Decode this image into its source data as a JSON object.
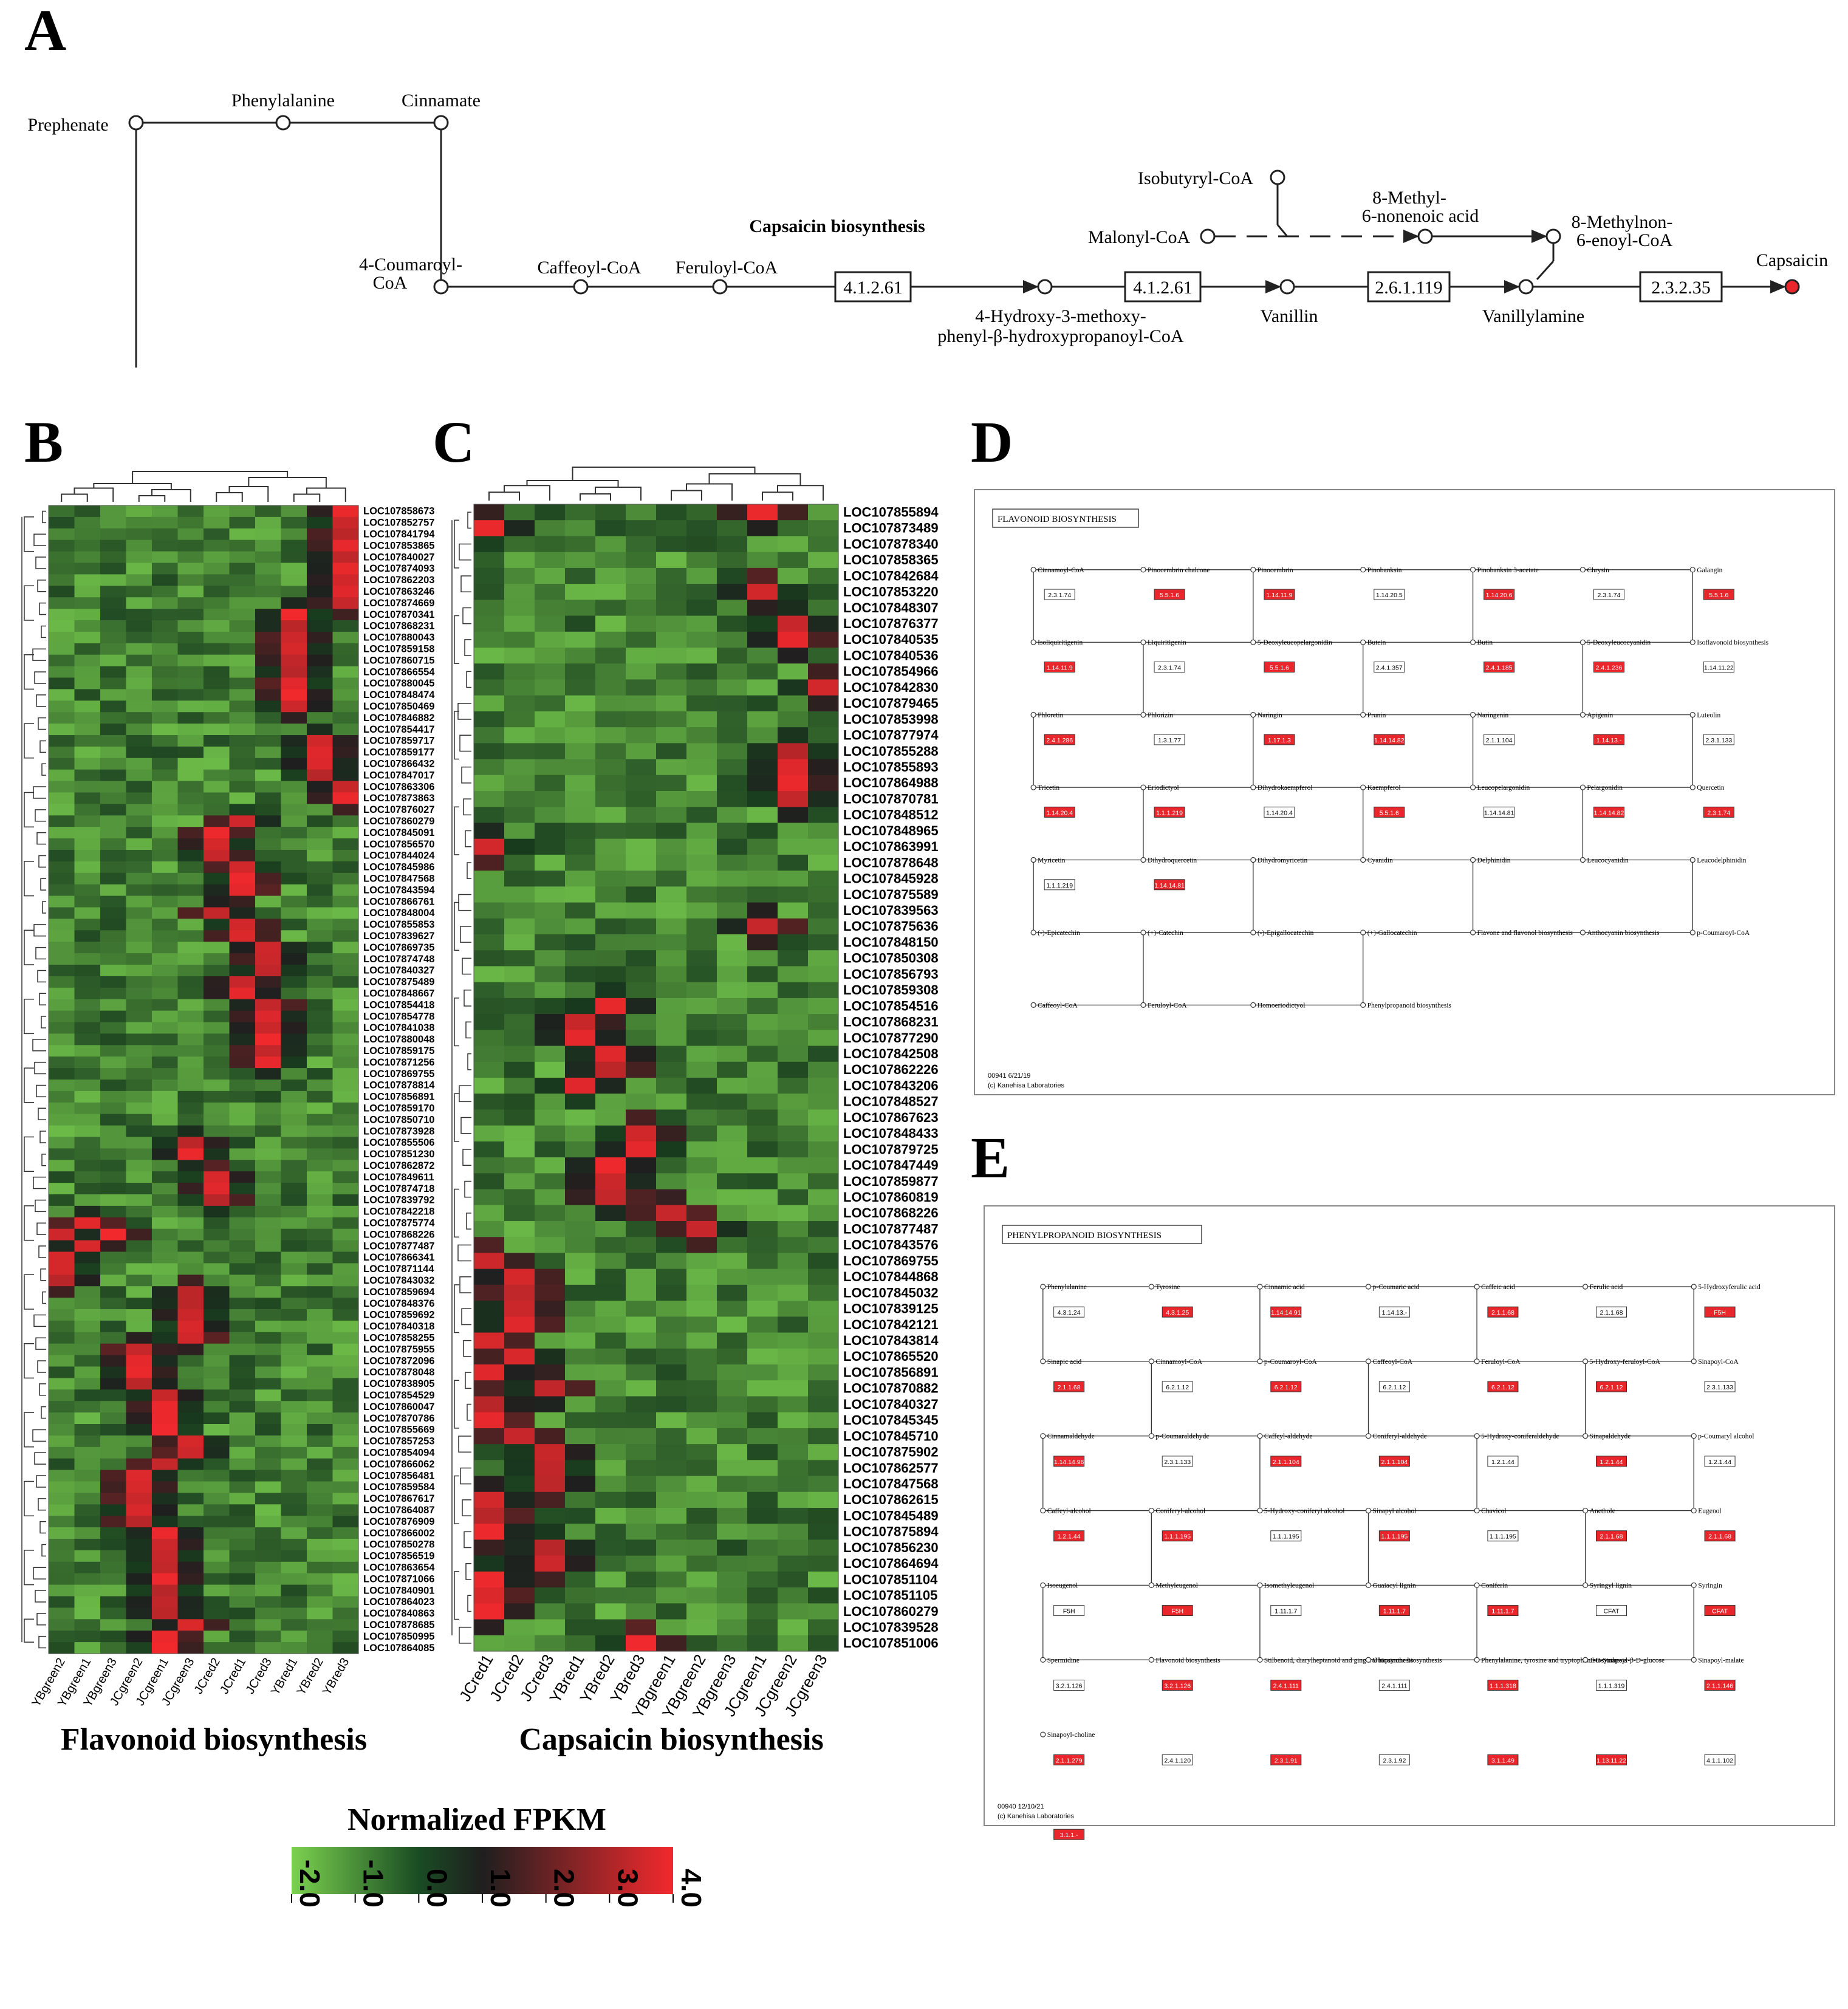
{
  "panel_letters": [
    "A",
    "B",
    "C",
    "D",
    "E"
  ],
  "panel_a": {
    "title": "Capsaicin biosynthesis",
    "compounds": {
      "prephenate": "Prephenate",
      "phenylalanine": "Phenylalanine",
      "cinnamate": "Cinnamate",
      "coumaroyl": [
        "4-Coumaroyl-",
        "CoA"
      ],
      "caffeoyl": "Caffeoyl-CoA",
      "feruloyl": "Feruloyl-CoA",
      "hmp": [
        "4-Hydroxy-3-methoxy-",
        "phenyl-β-hydroxypropanoyl-CoA"
      ],
      "vanillin": "Vanillin",
      "vanillylamine": "Vanillylamine",
      "isobutyryl": "Isobutyryl-CoA",
      "malonyl": "Malonyl-CoA",
      "methylnonenoic": [
        "8-Methyl-",
        "6-nonenoic acid"
      ],
      "methylnonenoyl": [
        "8-Methylnon-",
        "6-enoyl-CoA"
      ],
      "capsaicin": "Capsaicin"
    },
    "enzymes": [
      "4.1.2.61",
      "4.1.2.61",
      "2.6.1.119",
      "2.3.2.35"
    ],
    "colors": {
      "product_node": "#e8262b"
    }
  },
  "panel_b": {
    "caption": "Flavonoid biosynthesis",
    "samples": [
      "YBgreen2",
      "YBgreen1",
      "YBgreen3",
      "JCgreen2",
      "JCgreen1",
      "JCgreen3",
      "JCred2",
      "JCred1",
      "JCred3",
      "YBred1",
      "YBred2",
      "YBred3"
    ],
    "genes": [
      "LOC107858673",
      "LOC107852757",
      "LOC107841794",
      "LOC107853865",
      "LOC107840027",
      "LOC107874093",
      "LOC107862203",
      "LOC107863246",
      "LOC107874669",
      "LOC107870341",
      "LOC107868231",
      "LOC107880043",
      "LOC107859158",
      "LOC107860715",
      "LOC107866554",
      "LOC107880045",
      "LOC107848474",
      "LOC107850469",
      "LOC107846882",
      "LOC107854417",
      "LOC107859717",
      "LOC107859177",
      "LOC107866432",
      "LOC107847017",
      "LOC107863306",
      "LOC107873863",
      "LOC107876027",
      "LOC107860279",
      "LOC107845091",
      "LOC107856570",
      "LOC107844024",
      "LOC107845986",
      "LOC107847568",
      "LOC107843594",
      "LOC107866761",
      "LOC107848004",
      "LOC107855853",
      "LOC107839627",
      "LOC107869735",
      "LOC107874748",
      "LOC107840327",
      "LOC107875489",
      "LOC107848667",
      "LOC107854418",
      "LOC107854778",
      "LOC107841038",
      "LOC107880048",
      "LOC107859175",
      "LOC107871256",
      "LOC107869755",
      "LOC107878814",
      "LOC107856891",
      "LOC107859170",
      "LOC107850710",
      "LOC107873928",
      "LOC107855506",
      "LOC107851230",
      "LOC107862872",
      "LOC107849611",
      "LOC107874718",
      "LOC107839792",
      "LOC107842218",
      "LOC107875774",
      "LOC107868226",
      "LOC107877487",
      "LOC107866341",
      "LOC107871144",
      "LOC107843032",
      "LOC107859694",
      "LOC107848376",
      "LOC107859692",
      "LOC107840318",
      "LOC107858255",
      "LOC107875955",
      "LOC107872096",
      "LOC107878048",
      "LOC107838905",
      "LOC107854529",
      "LOC107860047",
      "LOC107870786",
      "LOC107855669",
      "LOC107857253",
      "LOC107854094",
      "LOC107866062",
      "LOC107856481",
      "LOC107859584",
      "LOC107867617",
      "LOC107864087",
      "LOC107876909",
      "LOC107866002",
      "LOC107850278",
      "LOC107856519",
      "LOC107863654",
      "LOC107871066",
      "LOC107840901",
      "LOC107864023",
      "LOC107840863",
      "LOC107878685",
      "LOC107850995",
      "LOC107864085"
    ]
  },
  "panel_c": {
    "caption": "Capsaicin biosynthesis",
    "samples": [
      "JCred1",
      "JCred2",
      "JCred3",
      "YBred1",
      "YBred2",
      "YBred3",
      "YBgreen1",
      "YBgreen2",
      "YBgreen3",
      "JCgreen1",
      "JCgreen2",
      "JCgreen3"
    ],
    "genes": [
      "LOC107855894",
      "LOC107873489",
      "LOC107878340",
      "LOC107858365",
      "LOC107842684",
      "LOC107853220",
      "LOC107848307",
      "LOC107876377",
      "LOC107840535",
      "LOC107840536",
      "LOC107854966",
      "LOC107842830",
      "LOC107879465",
      "LOC107853998",
      "LOC107877974",
      "LOC107855288",
      "LOC107855893",
      "LOC107864988",
      "LOC107870781",
      "LOC107848512",
      "LOC107848965",
      "LOC107863991",
      "LOC107878648",
      "LOC107845928",
      "LOC107875589",
      "LOC107839563",
      "LOC107875636",
      "LOC107848150",
      "LOC107850308",
      "LOC107856793",
      "LOC107859308",
      "LOC107854516",
      "LOC107868231",
      "LOC107877290",
      "LOC107842508",
      "LOC107862226",
      "LOC107843206",
      "LOC107848527",
      "LOC107867623",
      "LOC107848433",
      "LOC107879725",
      "LOC107847449",
      "LOC107859877",
      "LOC107860819",
      "LOC107868226",
      "LOC107877487",
      "LOC107843576",
      "LOC107869755",
      "LOC107844868",
      "LOC107845032",
      "LOC107839125",
      "LOC107842121",
      "LOC107843814",
      "LOC107865520",
      "LOC107856891",
      "LOC107870882",
      "LOC107840327",
      "LOC107845345",
      "LOC107845710",
      "LOC107875902",
      "LOC107862577",
      "LOC107847568",
      "LOC107862615",
      "LOC107845489",
      "LOC107875894",
      "LOC107856230",
      "LOC107864694",
      "LOC107851104",
      "LOC107851105",
      "LOC107860279",
      "LOC107839528",
      "LOC107851006"
    ]
  },
  "panel_d": {
    "title": "FLAVONOID BIOSYNTHESIS",
    "footer": [
      "00941 6/21/19",
      "(c) Kanehisa Laboratories"
    ],
    "labels": [
      "Cinnamoyl-CoA",
      "Pinocembrin chalcone",
      "Pinocembrin",
      "Pinobanksin",
      "Pinobanksin 3-acetate",
      "Chrysin",
      "Galangin",
      "Isoliquiritigenin",
      "Liquiritigenin",
      "5-Deoxyleucopelargonidin",
      "Butein",
      "Butin",
      "5-Deoxyleucocyanidin",
      "Isoflavonoid biosynthesis",
      "Phloretin",
      "Phlorizin",
      "Naringin",
      "Prunin",
      "Naringenin",
      "Apigenin",
      "Luteolin",
      "Tricetin",
      "Eriodictyol",
      "Dihydrokaempferol",
      "Kaempferol",
      "Leucopelargonidin",
      "Pelargonidin",
      "Quercetin",
      "Myricetin",
      "Dihydroquercetin",
      "Dihydromyricetin",
      "Cyanidin",
      "Delphinidin",
      "Leucocyanidin",
      "Leucodelphinidin",
      "(-)-Epicatechin",
      "(+)-Catechin",
      "(-)-Epigallocatechin",
      "(+)-Gallocatechin",
      "Flavone and flavonol biosynthesis",
      "Anthocyanin biosynthesis",
      "p-Coumaroyl-CoA",
      "Caffeoyl-CoA",
      "Feruloyl-CoA",
      "Homoeriodictyol",
      "Phenylpropanoid biosynthesis"
    ],
    "enzymes": [
      "2.3.1.74",
      "5.5.1.6",
      "1.14.11.9",
      "1.14.20.5",
      "1.14.20.6",
      "2.3.1.74",
      "5.5.1.6",
      "1.14.11.9",
      "2.3.1.74",
      "5.5.1.6",
      "2.4.1.357",
      "2.4.1.185",
      "2.4.1.236",
      "1.14.11.22",
      "2.4.1.286",
      "1.3.1.77",
      "1.17.1.3",
      "1.14.14.82",
      "2.1.1.104",
      "1.14.13.-",
      "2.3.1.133",
      "1.14.20.4",
      "1.1.1.219",
      "1.14.20.4",
      "5.5.1.6",
      "1.14.14.81",
      "1.14.14.82",
      "2.3.1.74",
      "1.1.1.219",
      "1.14.14.81"
    ]
  },
  "panel_e": {
    "title": "PHENYLPROPANOID BIOSYNTHESIS",
    "footer": [
      "00940 12/10/21",
      "(c) Kanehisa Laboratories"
    ],
    "labels": [
      "Phenylalanine",
      "Tyrosine",
      "Cinnamic acid",
      "p-Coumaric acid",
      "Caffeic acid",
      "Ferulic acid",
      "5-Hydroxyferulic acid",
      "Sinapic acid",
      "Cinnamoyl-CoA",
      "p-Coumaroyl-CoA",
      "Caffeoyl-CoA",
      "Feruloyl-CoA",
      "5-Hydroxy-feruloyl-CoA",
      "Sinapoyl-CoA",
      "Cinnamaldehyde",
      "p-Coumaraldehyde",
      "Caffeyl-aldehyde",
      "Coniferyl-aldehyde",
      "5-Hydroxy-coniferaldehyde",
      "Sinapaldehyde",
      "p-Coumaryl alcohol",
      "Caffeyl-alcohol",
      "Coniferyl-alcohol",
      "5-Hydroxy-coniferyl alcohol",
      "Sinapyl alcohol",
      "Chavicol",
      "Anethole",
      "Eugenol",
      "Isoeugenol",
      "Methyleugenol",
      "Isomethyleugenol",
      "Guaiacyl lignin",
      "Coniferin",
      "Syringyl lignin",
      "Syringin",
      "Spermidine",
      "Flavonoid biosynthesis",
      "Stilbenoid, diarylheptanoid and gingerol biosynthesis",
      "Ubiquinone biosynthesis",
      "Phenylalanine, tyrosine and tryptophan biosynthesis",
      "1-O-Sinapoyl-β-D-glucose",
      "Sinapoyl-malate",
      "Sinapoyl-choline"
    ],
    "enzymes": [
      "4.3.1.24",
      "4.3.1.25",
      "1.14.14.91",
      "1.14.13.-",
      "2.1.1.68",
      "2.1.1.68",
      "F5H",
      "2.1.1.68",
      "6.2.1.12",
      "6.2.1.12",
      "6.2.1.12",
      "6.2.1.12",
      "6.2.1.12",
      "2.3.1.133",
      "1.14.14.96",
      "2.3.1.133",
      "2.1.1.104",
      "2.1.1.104",
      "1.2.1.44",
      "1.2.1.44",
      "1.2.1.44",
      "1.2.1.44",
      "1.1.1.195",
      "1.1.1.195",
      "1.1.1.195",
      "1.1.1.195",
      "2.1.1.68",
      "2.1.1.68",
      "F5H",
      "F5H",
      "1.11.1.7",
      "1.11.1.7",
      "1.11.1.7",
      "CFAT",
      "CFAT",
      "3.2.1.126",
      "3.2.1.126",
      "2.4.1.111",
      "2.4.1.111",
      "1.1.1.318",
      "1.1.1.319",
      "2.1.1.146",
      "2.1.1.279",
      "2.4.1.120",
      "2.3.1.91",
      "2.3.1.92",
      "3.1.1.49",
      "1.13.11.22",
      "4.1.1.102",
      "3.1.1.-"
    ]
  },
  "legend": {
    "title": "Normalized FPKM",
    "ticks": [
      "-2.0",
      "-1.0",
      "0.0",
      "1.0",
      "2.0",
      "3.0",
      "4.0"
    ],
    "color_low": "#7bd14f",
    "color_mid": "#1f1f1f",
    "color_high": "#f2292d"
  },
  "chart_data": [
    {
      "type": "heatmap",
      "title": "Flavonoid biosynthesis",
      "scale": "Normalized FPKM",
      "range": [
        -2.0,
        4.0
      ],
      "columns": [
        "YBgreen2",
        "YBgreen1",
        "YBgreen3",
        "JCgreen2",
        "JCgreen1",
        "JCgreen3",
        "JCred2",
        "JCred1",
        "JCred3",
        "YBred1",
        "YBred2",
        "YBred3"
      ],
      "high_cells": [
        [
          0,
          11
        ],
        [
          1,
          11
        ],
        [
          2,
          11
        ],
        [
          3,
          11
        ],
        [
          4,
          11
        ],
        [
          5,
          11
        ],
        [
          6,
          11
        ],
        [
          7,
          11
        ],
        [
          8,
          11
        ],
        [
          9,
          9
        ],
        [
          10,
          9
        ],
        [
          11,
          9
        ],
        [
          12,
          9
        ],
        [
          13,
          9
        ],
        [
          14,
          9
        ],
        [
          15,
          9
        ],
        [
          16,
          9
        ],
        [
          17,
          9
        ],
        [
          20,
          10
        ],
        [
          21,
          10
        ],
        [
          22,
          10
        ],
        [
          23,
          10
        ],
        [
          24,
          11
        ],
        [
          25,
          11
        ],
        [
          27,
          7
        ],
        [
          28,
          6
        ],
        [
          29,
          6
        ],
        [
          30,
          6
        ],
        [
          31,
          7
        ],
        [
          32,
          7
        ],
        [
          33,
          7
        ],
        [
          35,
          6
        ],
        [
          36,
          7
        ],
        [
          37,
          7
        ],
        [
          38,
          8
        ],
        [
          39,
          8
        ],
        [
          40,
          8
        ],
        [
          41,
          7
        ],
        [
          42,
          7
        ],
        [
          43,
          8
        ],
        [
          44,
          8
        ],
        [
          45,
          8
        ],
        [
          46,
          8
        ],
        [
          47,
          8
        ],
        [
          48,
          8
        ],
        [
          55,
          5
        ],
        [
          56,
          5
        ],
        [
          58,
          6
        ],
        [
          59,
          6
        ],
        [
          60,
          6
        ],
        [
          62,
          1
        ],
        [
          63,
          2
        ],
        [
          63,
          0
        ],
        [
          64,
          1
        ],
        [
          65,
          0
        ],
        [
          66,
          0
        ],
        [
          67,
          0
        ],
        [
          68,
          5
        ],
        [
          69,
          5
        ],
        [
          70,
          5
        ],
        [
          71,
          5
        ],
        [
          72,
          5
        ],
        [
          73,
          3
        ],
        [
          74,
          3
        ],
        [
          75,
          3
        ],
        [
          76,
          3
        ],
        [
          77,
          4
        ],
        [
          78,
          4
        ],
        [
          79,
          4
        ],
        [
          80,
          4
        ],
        [
          81,
          5
        ],
        [
          82,
          5
        ],
        [
          83,
          4
        ],
        [
          84,
          3
        ],
        [
          85,
          3
        ],
        [
          86,
          3
        ],
        [
          87,
          3
        ],
        [
          88,
          3
        ],
        [
          89,
          4
        ],
        [
          90,
          4
        ],
        [
          91,
          4
        ],
        [
          92,
          4
        ],
        [
          93,
          4
        ],
        [
          94,
          4
        ],
        [
          95,
          4
        ],
        [
          96,
          4
        ],
        [
          97,
          5
        ],
        [
          98,
          4
        ],
        [
          99,
          4
        ]
      ]
    },
    {
      "type": "heatmap",
      "title": "Capsaicin biosynthesis",
      "scale": "Normalized FPKM",
      "range": [
        -2.0,
        4.0
      ],
      "columns": [
        "JCred1",
        "JCred2",
        "JCred3",
        "YBred1",
        "YBred2",
        "YBred3",
        "YBgreen1",
        "YBgreen2",
        "YBgreen3",
        "JCgreen1",
        "JCgreen2",
        "JCgreen3"
      ],
      "high_cells": [
        [
          0,
          9
        ],
        [
          1,
          0
        ],
        [
          5,
          9
        ],
        [
          7,
          10
        ],
        [
          8,
          10
        ],
        [
          11,
          11
        ],
        [
          15,
          10
        ],
        [
          16,
          10
        ],
        [
          17,
          10
        ],
        [
          18,
          10
        ],
        [
          21,
          0
        ],
        [
          26,
          9
        ],
        [
          31,
          4
        ],
        [
          32,
          3
        ],
        [
          33,
          3
        ],
        [
          34,
          4
        ],
        [
          35,
          4
        ],
        [
          36,
          3
        ],
        [
          39,
          5
        ],
        [
          40,
          5
        ],
        [
          41,
          4
        ],
        [
          42,
          4
        ],
        [
          43,
          4
        ],
        [
          44,
          6
        ],
        [
          45,
          7
        ],
        [
          47,
          0
        ],
        [
          48,
          1
        ],
        [
          49,
          1
        ],
        [
          50,
          1
        ],
        [
          51,
          1
        ],
        [
          52,
          0
        ],
        [
          53,
          1
        ],
        [
          54,
          0
        ],
        [
          55,
          2
        ],
        [
          56,
          0
        ],
        [
          57,
          0
        ],
        [
          58,
          1
        ],
        [
          59,
          2
        ],
        [
          60,
          2
        ],
        [
          61,
          2
        ],
        [
          62,
          0
        ],
        [
          63,
          0
        ],
        [
          64,
          0
        ],
        [
          65,
          2
        ],
        [
          66,
          2
        ],
        [
          67,
          0
        ],
        [
          68,
          0
        ],
        [
          69,
          0
        ],
        [
          71,
          5
        ]
      ]
    }
  ]
}
